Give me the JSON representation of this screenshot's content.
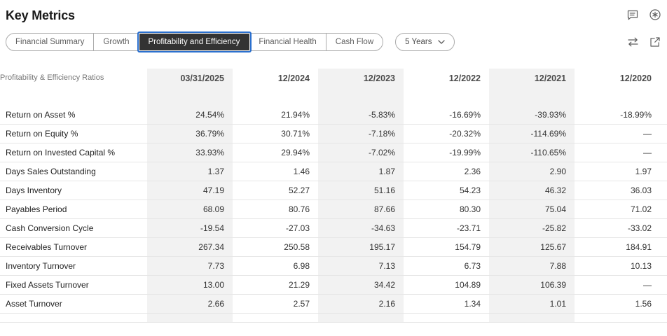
{
  "page_title": "Key Metrics",
  "header_actions": {
    "comment_icon": "comment-icon",
    "asterisk_icon": "circled-asterisk-icon",
    "compare_icon": "swap-arrows-icon",
    "export_icon": "export-icon"
  },
  "tabs": {
    "items": [
      {
        "label": "Financial Summary",
        "selected": false
      },
      {
        "label": "Growth",
        "selected": false
      },
      {
        "label": "Profitability and Efficiency",
        "selected": true
      },
      {
        "label": "Financial Health",
        "selected": false
      },
      {
        "label": "Cash Flow",
        "selected": false
      }
    ]
  },
  "period_selector": {
    "value": "5 Years"
  },
  "table": {
    "corner_label": "Profitability & Efficiency Ratios",
    "columns": [
      "03/31/2025",
      "12/2024",
      "12/2023",
      "12/2022",
      "12/2021",
      "12/2020"
    ],
    "shaded_column_indexes": [
      0,
      2,
      4
    ],
    "rows": [
      {
        "label": "Return on Asset %",
        "values": [
          "24.54%",
          "21.94%",
          "-5.83%",
          "-16.69%",
          "-39.93%",
          "-18.99%"
        ]
      },
      {
        "label": "Return on Equity %",
        "values": [
          "36.79%",
          "30.71%",
          "-7.18%",
          "-20.32%",
          "-114.69%",
          "—"
        ]
      },
      {
        "label": "Return on Invested Capital %",
        "values": [
          "33.93%",
          "29.94%",
          "-7.02%",
          "-19.99%",
          "-110.65%",
          "—"
        ]
      },
      {
        "label": "Days Sales Outstanding",
        "values": [
          "1.37",
          "1.46",
          "1.87",
          "2.36",
          "2.90",
          "1.97"
        ]
      },
      {
        "label": "Days Inventory",
        "values": [
          "47.19",
          "52.27",
          "51.16",
          "54.23",
          "46.32",
          "36.03"
        ]
      },
      {
        "label": "Payables Period",
        "values": [
          "68.09",
          "80.76",
          "87.66",
          "80.30",
          "75.04",
          "71.02"
        ]
      },
      {
        "label": "Cash Conversion Cycle",
        "values": [
          "-19.54",
          "-27.03",
          "-34.63",
          "-23.71",
          "-25.82",
          "-33.02"
        ]
      },
      {
        "label": "Receivables Turnover",
        "values": [
          "267.34",
          "250.58",
          "195.17",
          "154.79",
          "125.67",
          "184.91"
        ]
      },
      {
        "label": "Inventory Turnover",
        "values": [
          "7.73",
          "6.98",
          "7.13",
          "6.73",
          "7.88",
          "10.13"
        ]
      },
      {
        "label": "Fixed Assets Turnover",
        "values": [
          "13.00",
          "21.29",
          "34.42",
          "104.89",
          "106.39",
          "—"
        ]
      },
      {
        "label": "Asset Turnover",
        "values": [
          "2.66",
          "2.57",
          "2.16",
          "1.34",
          "1.01",
          "1.56"
        ]
      }
    ]
  },
  "colors": {
    "accent_blue": "#2B70CE",
    "selected_tab_bg": "#333333",
    "shaded_column_bg": "#F2F2F2",
    "row_divider": "#E6E6E6",
    "muted_text": "#5E5E5E"
  }
}
